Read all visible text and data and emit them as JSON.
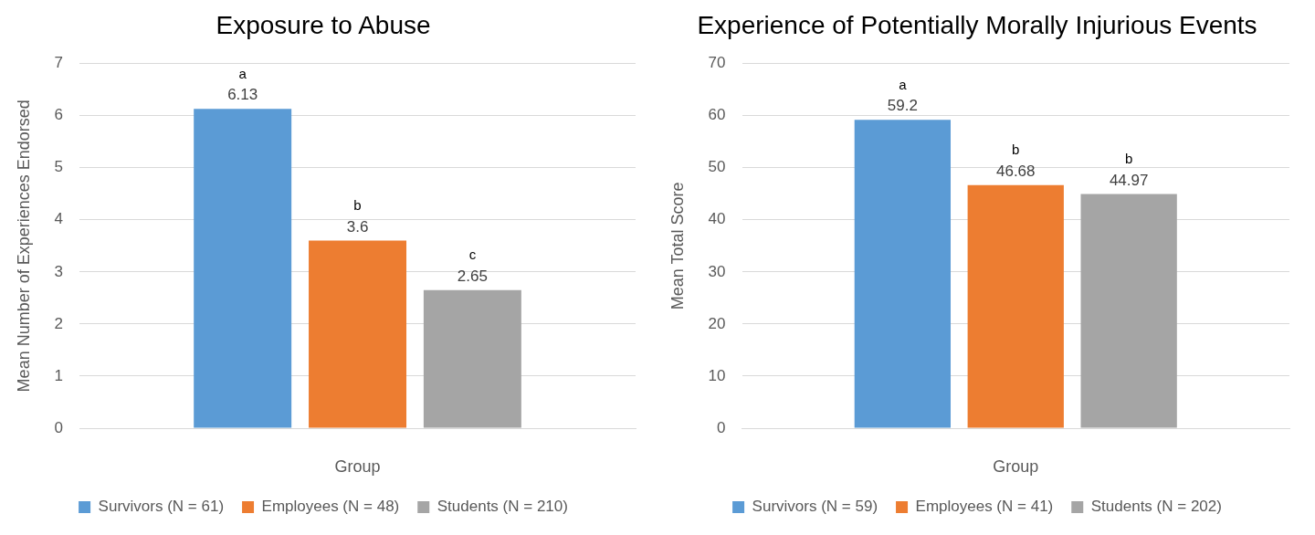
{
  "chart_data": [
    {
      "type": "bar",
      "title": "Exposure to Abuse",
      "xlabel": "Group",
      "ylabel": "Mean Number of Experiences Endorsed",
      "categories": [
        null
      ],
      "series": [
        {
          "name": "Survivors (N = 61)",
          "color": "#5b9bd5",
          "values": [
            6.13
          ]
        },
        {
          "name": "Employees (N = 48)",
          "color": "#ed7d31",
          "values": [
            3.6
          ]
        },
        {
          "name": "Students (N = 210)",
          "color": "#a5a5a5",
          "values": [
            2.65
          ]
        }
      ],
      "ylim": [
        0,
        7
      ],
      "yticks": [
        0,
        1,
        2,
        3,
        4,
        5,
        6,
        7
      ],
      "grid": "y",
      "legend": "bottom",
      "data_labels": true,
      "annotations": [
        {
          "text": "a",
          "y": 6.13
        },
        {
          "text": "b",
          "y": 3.6
        },
        {
          "text": "c",
          "y": 2.65
        }
      ]
    },
    {
      "type": "bar",
      "title": "Experience of Potentially Morally Injurious Events",
      "xlabel": "Group",
      "ylabel": "Mean Total Score",
      "categories": [
        null
      ],
      "series": [
        {
          "name": "Survivors (N = 59)",
          "color": "#5b9bd5",
          "values": [
            59.2
          ]
        },
        {
          "name": "Employees (N = 41)",
          "color": "#ed7d31",
          "values": [
            46.68
          ]
        },
        {
          "name": "Students (N = 202)",
          "color": "#a5a5a5",
          "values": [
            44.97
          ]
        }
      ],
      "ylim": [
        0,
        70
      ],
      "yticks": [
        0,
        10,
        20,
        30,
        40,
        50,
        60,
        70
      ],
      "grid": "y",
      "legend": "bottom",
      "data_labels": true,
      "annotations": [
        {
          "text": "a",
          "y": 59.2
        },
        {
          "text": "b",
          "y": 46.68
        },
        {
          "text": "b",
          "y": 44.97
        }
      ]
    }
  ]
}
